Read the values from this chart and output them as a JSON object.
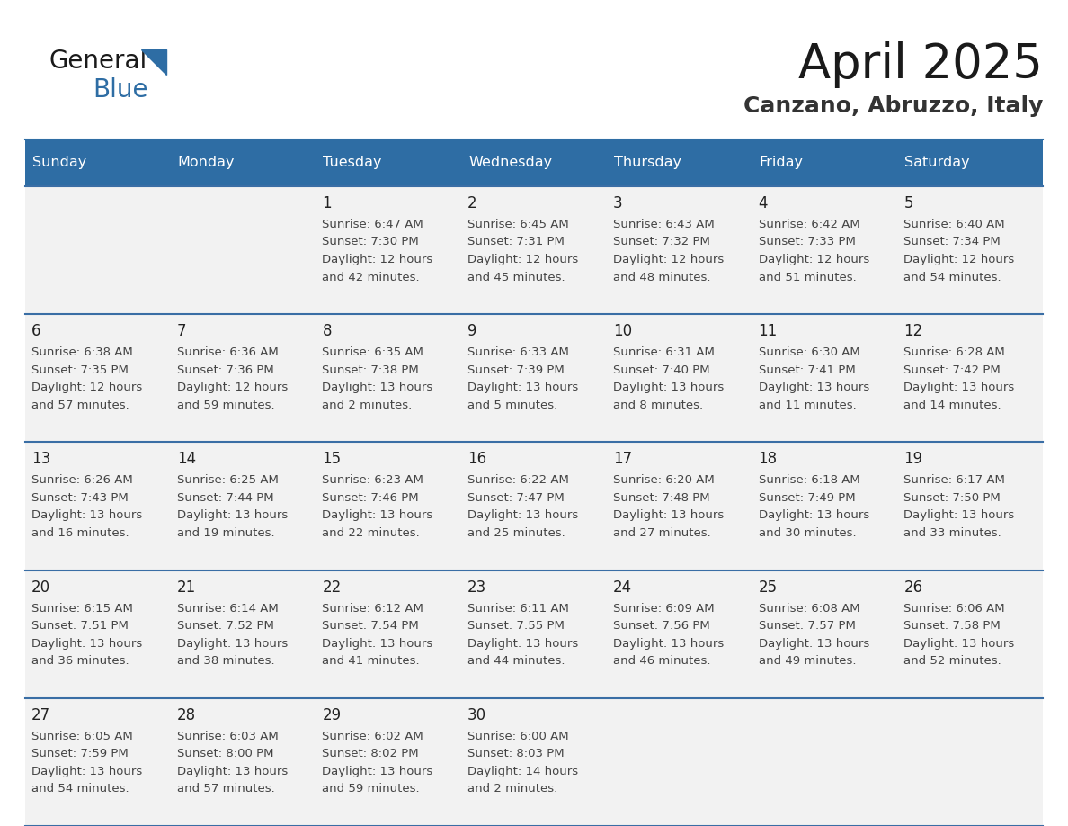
{
  "title": "April 2025",
  "subtitle": "Canzano, Abruzzo, Italy",
  "header_bg": "#2E6DA4",
  "header_text_color": "#FFFFFF",
  "cell_bg": "#F2F2F2",
  "cell_bg_white": "#FFFFFF",
  "divider_color": "#2E6DA4",
  "row_divider_color": "#3A6EA5",
  "text_color": "#333333",
  "day_number_color": "#222222",
  "info_text_color": "#444444",
  "day_headers": [
    "Sunday",
    "Monday",
    "Tuesday",
    "Wednesday",
    "Thursday",
    "Friday",
    "Saturday"
  ],
  "weeks": [
    [
      {
        "day": "",
        "info": ""
      },
      {
        "day": "",
        "info": ""
      },
      {
        "day": "1",
        "info": "Sunrise: 6:47 AM\nSunset: 7:30 PM\nDaylight: 12 hours\nand 42 minutes."
      },
      {
        "day": "2",
        "info": "Sunrise: 6:45 AM\nSunset: 7:31 PM\nDaylight: 12 hours\nand 45 minutes."
      },
      {
        "day": "3",
        "info": "Sunrise: 6:43 AM\nSunset: 7:32 PM\nDaylight: 12 hours\nand 48 minutes."
      },
      {
        "day": "4",
        "info": "Sunrise: 6:42 AM\nSunset: 7:33 PM\nDaylight: 12 hours\nand 51 minutes."
      },
      {
        "day": "5",
        "info": "Sunrise: 6:40 AM\nSunset: 7:34 PM\nDaylight: 12 hours\nand 54 minutes."
      }
    ],
    [
      {
        "day": "6",
        "info": "Sunrise: 6:38 AM\nSunset: 7:35 PM\nDaylight: 12 hours\nand 57 minutes."
      },
      {
        "day": "7",
        "info": "Sunrise: 6:36 AM\nSunset: 7:36 PM\nDaylight: 12 hours\nand 59 minutes."
      },
      {
        "day": "8",
        "info": "Sunrise: 6:35 AM\nSunset: 7:38 PM\nDaylight: 13 hours\nand 2 minutes."
      },
      {
        "day": "9",
        "info": "Sunrise: 6:33 AM\nSunset: 7:39 PM\nDaylight: 13 hours\nand 5 minutes."
      },
      {
        "day": "10",
        "info": "Sunrise: 6:31 AM\nSunset: 7:40 PM\nDaylight: 13 hours\nand 8 minutes."
      },
      {
        "day": "11",
        "info": "Sunrise: 6:30 AM\nSunset: 7:41 PM\nDaylight: 13 hours\nand 11 minutes."
      },
      {
        "day": "12",
        "info": "Sunrise: 6:28 AM\nSunset: 7:42 PM\nDaylight: 13 hours\nand 14 minutes."
      }
    ],
    [
      {
        "day": "13",
        "info": "Sunrise: 6:26 AM\nSunset: 7:43 PM\nDaylight: 13 hours\nand 16 minutes."
      },
      {
        "day": "14",
        "info": "Sunrise: 6:25 AM\nSunset: 7:44 PM\nDaylight: 13 hours\nand 19 minutes."
      },
      {
        "day": "15",
        "info": "Sunrise: 6:23 AM\nSunset: 7:46 PM\nDaylight: 13 hours\nand 22 minutes."
      },
      {
        "day": "16",
        "info": "Sunrise: 6:22 AM\nSunset: 7:47 PM\nDaylight: 13 hours\nand 25 minutes."
      },
      {
        "day": "17",
        "info": "Sunrise: 6:20 AM\nSunset: 7:48 PM\nDaylight: 13 hours\nand 27 minutes."
      },
      {
        "day": "18",
        "info": "Sunrise: 6:18 AM\nSunset: 7:49 PM\nDaylight: 13 hours\nand 30 minutes."
      },
      {
        "day": "19",
        "info": "Sunrise: 6:17 AM\nSunset: 7:50 PM\nDaylight: 13 hours\nand 33 minutes."
      }
    ],
    [
      {
        "day": "20",
        "info": "Sunrise: 6:15 AM\nSunset: 7:51 PM\nDaylight: 13 hours\nand 36 minutes."
      },
      {
        "day": "21",
        "info": "Sunrise: 6:14 AM\nSunset: 7:52 PM\nDaylight: 13 hours\nand 38 minutes."
      },
      {
        "day": "22",
        "info": "Sunrise: 6:12 AM\nSunset: 7:54 PM\nDaylight: 13 hours\nand 41 minutes."
      },
      {
        "day": "23",
        "info": "Sunrise: 6:11 AM\nSunset: 7:55 PM\nDaylight: 13 hours\nand 44 minutes."
      },
      {
        "day": "24",
        "info": "Sunrise: 6:09 AM\nSunset: 7:56 PM\nDaylight: 13 hours\nand 46 minutes."
      },
      {
        "day": "25",
        "info": "Sunrise: 6:08 AM\nSunset: 7:57 PM\nDaylight: 13 hours\nand 49 minutes."
      },
      {
        "day": "26",
        "info": "Sunrise: 6:06 AM\nSunset: 7:58 PM\nDaylight: 13 hours\nand 52 minutes."
      }
    ],
    [
      {
        "day": "27",
        "info": "Sunrise: 6:05 AM\nSunset: 7:59 PM\nDaylight: 13 hours\nand 54 minutes."
      },
      {
        "day": "28",
        "info": "Sunrise: 6:03 AM\nSunset: 8:00 PM\nDaylight: 13 hours\nand 57 minutes."
      },
      {
        "day": "29",
        "info": "Sunrise: 6:02 AM\nSunset: 8:02 PM\nDaylight: 13 hours\nand 59 minutes."
      },
      {
        "day": "30",
        "info": "Sunrise: 6:00 AM\nSunset: 8:03 PM\nDaylight: 14 hours\nand 2 minutes."
      },
      {
        "day": "",
        "info": ""
      },
      {
        "day": "",
        "info": ""
      },
      {
        "day": "",
        "info": ""
      }
    ]
  ],
  "logo_color_general": "#1a1a1a",
  "logo_color_blue": "#2E6DA4",
  "logo_triangle_color": "#2E6DA4"
}
